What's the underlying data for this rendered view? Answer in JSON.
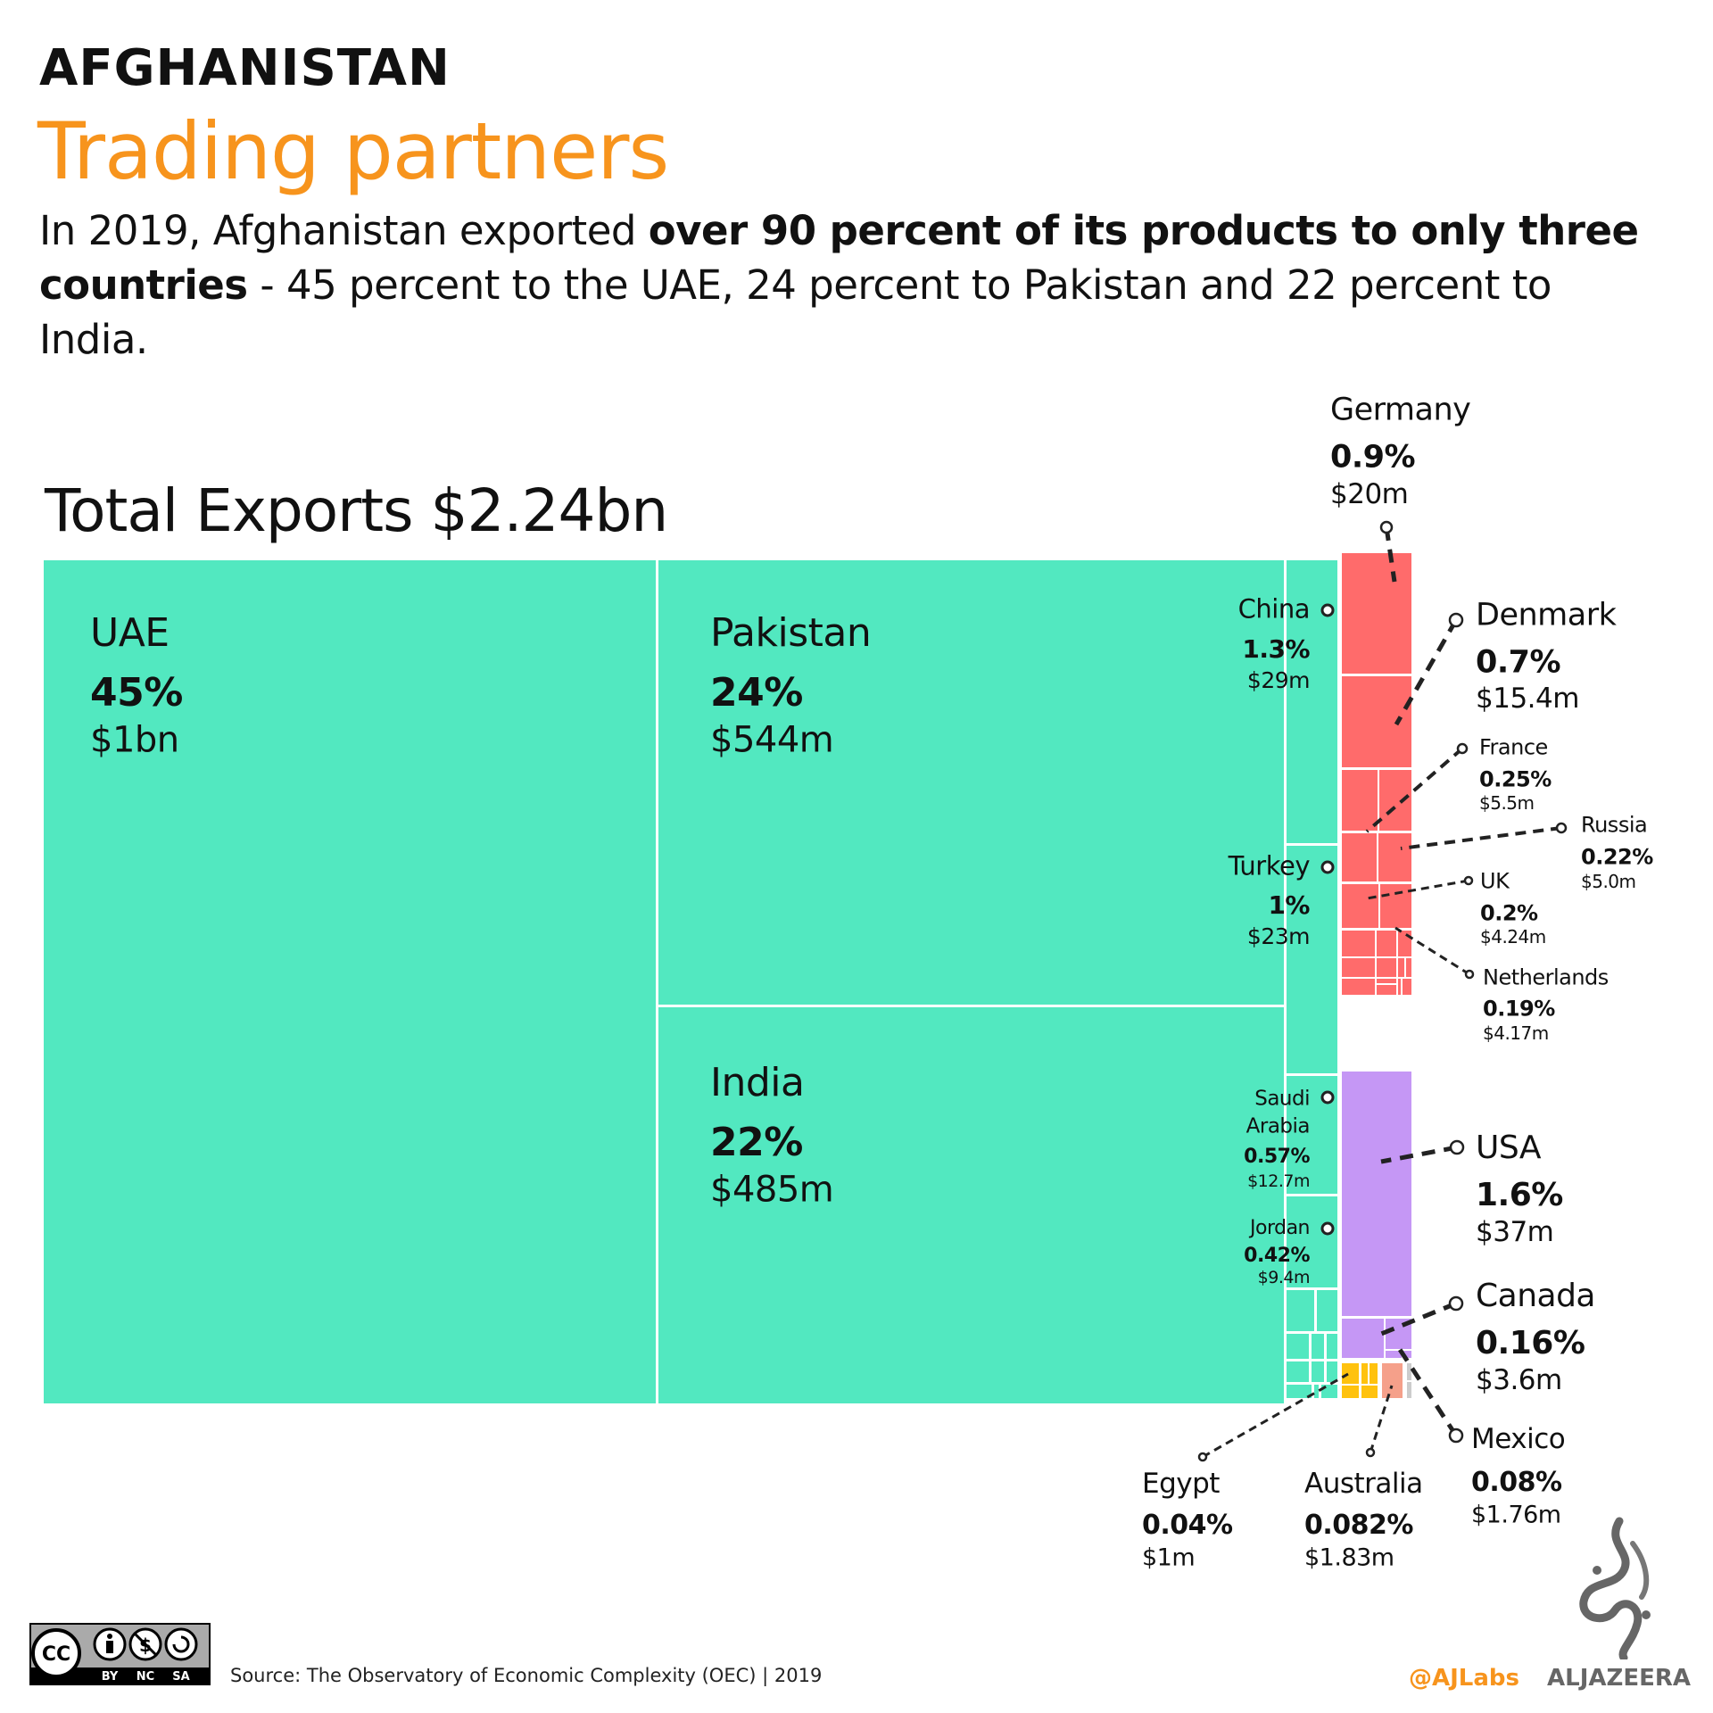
{
  "header": {
    "kicker": "AFGHANISTAN",
    "title": "Trading partners",
    "intro_1": "In 2019, Afghanistan exported ",
    "intro_bold": "over 90 percent of its products to only three countries",
    "intro_2": " - 45 percent to the UAE,  24 percent to Pakistan and 22 percent to India."
  },
  "total_label": "Total Exports $2.24bn",
  "chart_data": {
    "type": "treemap",
    "title": "Total Exports $2.24bn",
    "colors": {
      "asia": "#52E8C0",
      "europe": "#FF6B6B",
      "north_america": "#C597F5",
      "africa": "#FFC20E",
      "oceania": "#F5A08A",
      "other": "#CCCCCC"
    },
    "items": [
      {
        "name": "UAE",
        "pct": "45%",
        "value": "$1bn",
        "group": "asia"
      },
      {
        "name": "Pakistan",
        "pct": "24%",
        "value": "$544m",
        "group": "asia"
      },
      {
        "name": "India",
        "pct": "22%",
        "value": "$485m",
        "group": "asia"
      },
      {
        "name": "China",
        "pct": "1.3%",
        "value": "$29m",
        "group": "asia"
      },
      {
        "name": "Turkey",
        "pct": "1%",
        "value": "$23m",
        "group": "asia"
      },
      {
        "name": "Saudi Arabia",
        "pct": "0.57%",
        "value": "$12.7m",
        "group": "asia"
      },
      {
        "name": "Jordan",
        "pct": "0.42%",
        "value": "$9.4m",
        "group": "asia"
      },
      {
        "name": "Germany",
        "pct": "0.9%",
        "value": "$20m",
        "group": "europe"
      },
      {
        "name": "Denmark",
        "pct": "0.7%",
        "value": "$15.4m",
        "group": "europe"
      },
      {
        "name": "France",
        "pct": "0.25%",
        "value": "$5.5m",
        "group": "europe"
      },
      {
        "name": "Russia",
        "pct": "0.22%",
        "value": "$5.0m",
        "group": "europe"
      },
      {
        "name": "UK",
        "pct": "0.2%",
        "value": "$4.24m",
        "group": "europe"
      },
      {
        "name": "Netherlands",
        "pct": "0.19%",
        "value": "$4.17m",
        "group": "europe"
      },
      {
        "name": "USA",
        "pct": "1.6%",
        "value": "$37m",
        "group": "north_america"
      },
      {
        "name": "Canada",
        "pct": "0.16%",
        "value": "$3.6m",
        "group": "north_america"
      },
      {
        "name": "Mexico",
        "pct": "0.08%",
        "value": "$1.76m",
        "group": "north_america"
      },
      {
        "name": "Egypt",
        "pct": "0.04%",
        "value": "$1m",
        "group": "africa"
      },
      {
        "name": "Australia",
        "pct": "0.082%",
        "value": "$1.83m",
        "group": "oceania"
      }
    ]
  },
  "footer": {
    "source": "Source: The Observatory of Economic Complexity (OEC) | 2019",
    "license": [
      "BY",
      "NC",
      "SA"
    ],
    "license_logo": "cc",
    "handle": "@AJLabs",
    "brand": "ALJAZEERA"
  }
}
